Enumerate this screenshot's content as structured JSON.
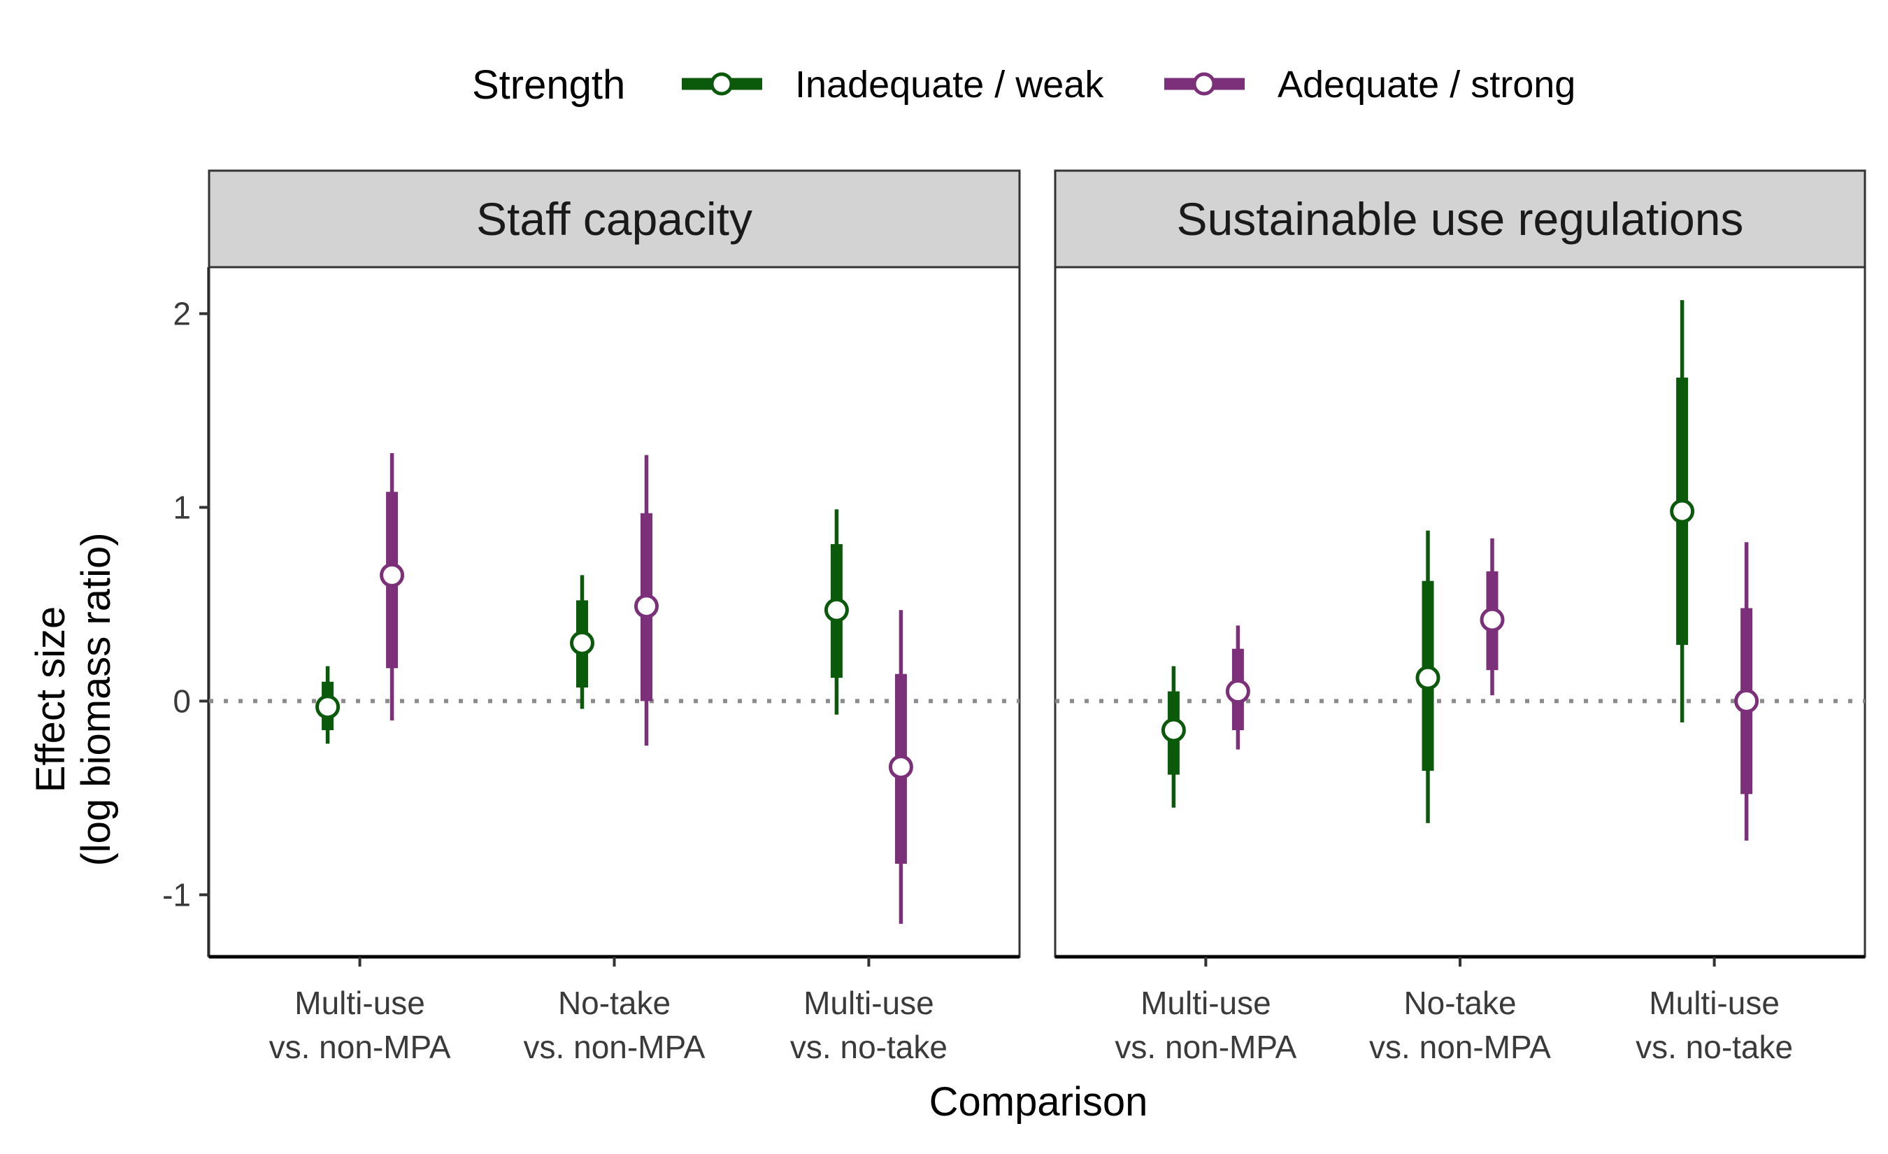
{
  "chart_data": {
    "type": "point-range",
    "x_axis_title": "Comparison",
    "y_axis_title_lines": [
      "Effect size",
      "(log biomass ratio)"
    ],
    "y_ticks": [
      -1,
      0,
      1,
      2
    ],
    "y_tick_labels": [
      "-1",
      "0",
      "1",
      "2"
    ],
    "ylim": [
      -1.32,
      2.24
    ],
    "reference_line": 0,
    "categories": [
      [
        "Multi-use",
        "vs. non-MPA"
      ],
      [
        "No-take",
        "vs. non-MPA"
      ],
      [
        "Multi-use",
        "vs. no-take"
      ]
    ],
    "legend": {
      "title": "Strength",
      "position": "top",
      "entries": [
        {
          "name": "Inadequate / weak",
          "color": "#0b5a0b"
        },
        {
          "name": "Adequate / strong",
          "color": "#7b3079"
        }
      ]
    },
    "panels": [
      {
        "title": "Staff capacity",
        "series": [
          {
            "name": "Inadequate / weak",
            "color": "#0b5a0b",
            "points": [
              {
                "estimate": -0.03,
                "inner": [
                  -0.15,
                  0.1
                ],
                "outer": [
                  -0.22,
                  0.18
                ]
              },
              {
                "estimate": 0.3,
                "inner": [
                  0.07,
                  0.52
                ],
                "outer": [
                  -0.04,
                  0.65
                ]
              },
              {
                "estimate": 0.47,
                "inner": [
                  0.12,
                  0.81
                ],
                "outer": [
                  -0.07,
                  0.99
                ]
              }
            ]
          },
          {
            "name": "Adequate / strong",
            "color": "#7b3079",
            "points": [
              {
                "estimate": 0.65,
                "inner": [
                  0.17,
                  1.08
                ],
                "outer": [
                  -0.1,
                  1.28
                ]
              },
              {
                "estimate": 0.49,
                "inner": [
                  0.0,
                  0.97
                ],
                "outer": [
                  -0.23,
                  1.27
                ]
              },
              {
                "estimate": -0.34,
                "inner": [
                  -0.84,
                  0.14
                ],
                "outer": [
                  -1.15,
                  0.47
                ]
              }
            ]
          }
        ]
      },
      {
        "title": "Sustainable use regulations",
        "series": [
          {
            "name": "Inadequate / weak",
            "color": "#0b5a0b",
            "points": [
              {
                "estimate": -0.15,
                "inner": [
                  -0.38,
                  0.05
                ],
                "outer": [
                  -0.55,
                  0.18
                ]
              },
              {
                "estimate": 0.12,
                "inner": [
                  -0.36,
                  0.62
                ],
                "outer": [
                  -0.63,
                  0.88
                ]
              },
              {
                "estimate": 0.98,
                "inner": [
                  0.29,
                  1.67
                ],
                "outer": [
                  -0.11,
                  2.07
                ]
              }
            ]
          },
          {
            "name": "Adequate / strong",
            "color": "#7b3079",
            "points": [
              {
                "estimate": 0.05,
                "inner": [
                  -0.15,
                  0.27
                ],
                "outer": [
                  -0.25,
                  0.39
                ]
              },
              {
                "estimate": 0.42,
                "inner": [
                  0.16,
                  0.67
                ],
                "outer": [
                  0.03,
                  0.84
                ]
              },
              {
                "estimate": 0.0,
                "inner": [
                  -0.48,
                  0.48
                ],
                "outer": [
                  -0.72,
                  0.82
                ]
              }
            ]
          }
        ]
      }
    ]
  }
}
